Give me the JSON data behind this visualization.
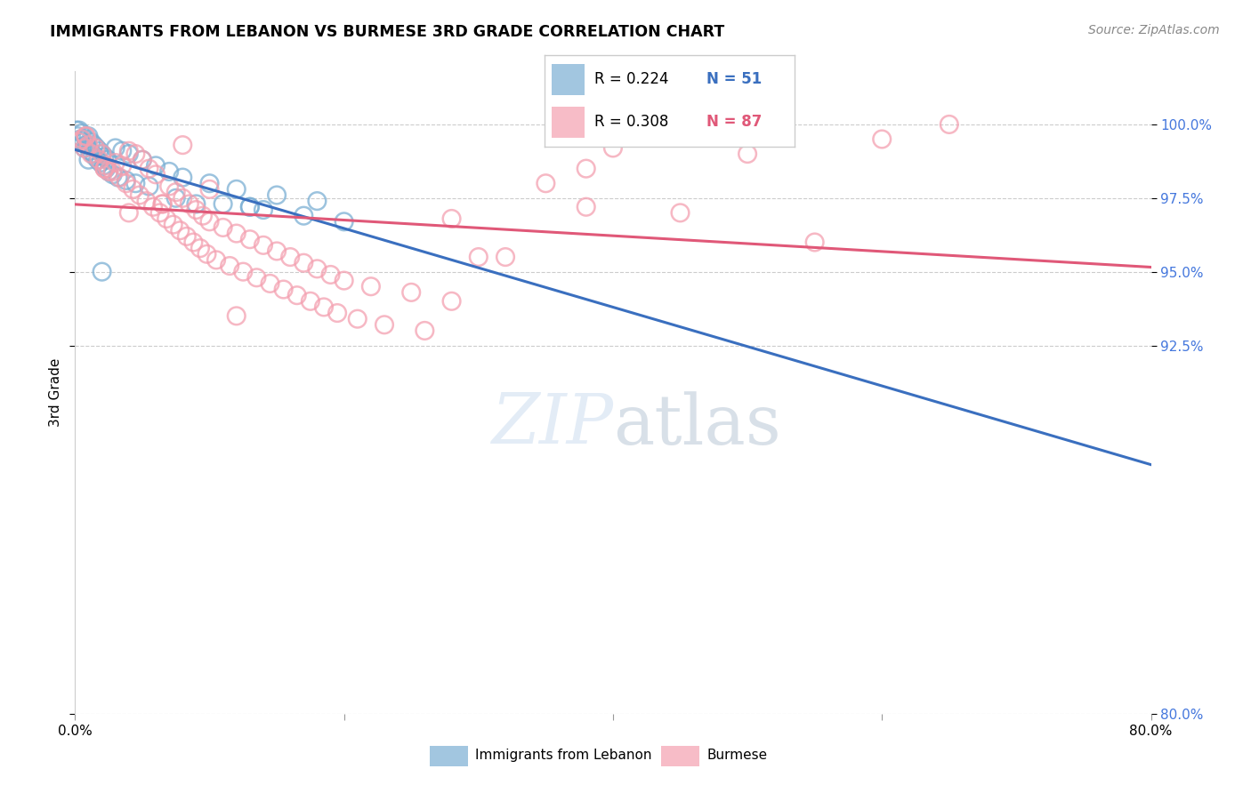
{
  "title": "IMMIGRANTS FROM LEBANON VS BURMESE 3RD GRADE CORRELATION CHART",
  "source": "Source: ZipAtlas.com",
  "ylabel": "3rd Grade",
  "ytick_values": [
    80.0,
    92.5,
    95.0,
    97.5,
    100.0
  ],
  "xlim": [
    0.0,
    80.0
  ],
  "ylim": [
    80.0,
    101.8
  ],
  "legend_blue_label": "Immigrants from Lebanon",
  "legend_pink_label": "Burmese",
  "legend_R_blue": "R = 0.224",
  "legend_N_blue": "N = 51",
  "legend_R_pink": "R = 0.308",
  "legend_N_pink": "N = 87",
  "blue_color": "#7BAFD4",
  "pink_color": "#F4A0B0",
  "blue_line_color": "#3A6FBF",
  "pink_line_color": "#E05878",
  "blue_scatter_x": [
    0.1,
    0.2,
    0.3,
    0.4,
    0.5,
    0.6,
    0.7,
    0.8,
    0.9,
    1.0,
    1.1,
    1.2,
    1.3,
    1.4,
    1.5,
    1.6,
    1.7,
    1.8,
    1.9,
    2.0,
    2.1,
    2.2,
    2.3,
    2.4,
    2.5,
    2.8,
    3.0,
    3.2,
    3.5,
    3.8,
    4.0,
    4.5,
    5.0,
    5.5,
    6.0,
    7.0,
    7.5,
    8.0,
    9.0,
    10.0,
    11.0,
    12.0,
    13.0,
    14.0,
    15.0,
    17.0,
    18.0,
    20.0,
    1.0,
    2.0,
    13.0
  ],
  "blue_scatter_y": [
    99.8,
    99.6,
    99.8,
    99.5,
    99.7,
    99.4,
    99.2,
    99.5,
    99.3,
    99.6,
    99.1,
    99.4,
    99.0,
    99.3,
    98.9,
    99.2,
    98.8,
    99.1,
    98.7,
    99.0,
    98.6,
    98.9,
    98.5,
    98.8,
    98.4,
    98.3,
    99.2,
    98.2,
    99.1,
    98.1,
    99.0,
    98.0,
    98.8,
    97.9,
    98.6,
    98.4,
    97.5,
    98.2,
    97.3,
    98.0,
    97.3,
    97.8,
    97.2,
    97.1,
    97.6,
    96.9,
    97.4,
    96.7,
    98.8,
    95.0,
    97.2
  ],
  "pink_scatter_x": [
    0.3,
    0.5,
    0.7,
    0.8,
    1.0,
    1.2,
    1.5,
    1.8,
    2.0,
    2.2,
    2.3,
    2.5,
    2.8,
    3.0,
    3.3,
    3.5,
    3.8,
    4.0,
    4.3,
    4.5,
    4.8,
    5.0,
    5.3,
    5.5,
    5.8,
    6.0,
    6.3,
    6.5,
    6.8,
    7.0,
    7.3,
    7.5,
    7.8,
    8.0,
    8.3,
    8.5,
    8.8,
    9.0,
    9.3,
    9.5,
    9.8,
    10.0,
    10.5,
    11.0,
    11.5,
    12.0,
    12.5,
    13.0,
    13.5,
    14.0,
    14.5,
    15.0,
    15.5,
    16.0,
    16.5,
    17.0,
    17.5,
    18.0,
    18.5,
    19.0,
    19.5,
    20.0,
    21.0,
    22.0,
    23.0,
    25.0,
    26.0,
    28.0,
    28.0,
    30.0,
    32.0,
    35.0,
    38.0,
    38.0,
    40.0,
    45.0,
    50.0,
    55.0,
    60.0,
    65.0,
    0.8,
    2.2,
    4.0,
    6.5,
    8.0,
    10.0,
    12.0
  ],
  "pink_scatter_y": [
    99.4,
    99.5,
    99.2,
    99.6,
    99.3,
    99.0,
    99.2,
    98.8,
    99.0,
    98.5,
    98.6,
    98.4,
    98.4,
    98.7,
    98.2,
    98.6,
    98.0,
    99.1,
    97.8,
    99.0,
    97.6,
    98.8,
    97.4,
    98.5,
    97.2,
    98.3,
    97.0,
    97.3,
    96.8,
    97.9,
    96.6,
    97.7,
    96.4,
    97.5,
    96.2,
    97.3,
    96.0,
    97.1,
    95.8,
    96.9,
    95.6,
    96.7,
    95.4,
    96.5,
    95.2,
    96.3,
    95.0,
    96.1,
    94.8,
    95.9,
    94.6,
    95.7,
    94.4,
    95.5,
    94.2,
    95.3,
    94.0,
    95.1,
    93.8,
    94.9,
    93.6,
    94.7,
    93.4,
    94.5,
    93.2,
    94.3,
    93.0,
    96.8,
    94.0,
    95.5,
    95.5,
    98.0,
    98.5,
    97.2,
    99.2,
    97.0,
    99.0,
    96.0,
    99.5,
    100.0,
    99.6,
    98.5,
    97.0,
    97.3,
    99.3,
    97.8,
    93.5
  ]
}
